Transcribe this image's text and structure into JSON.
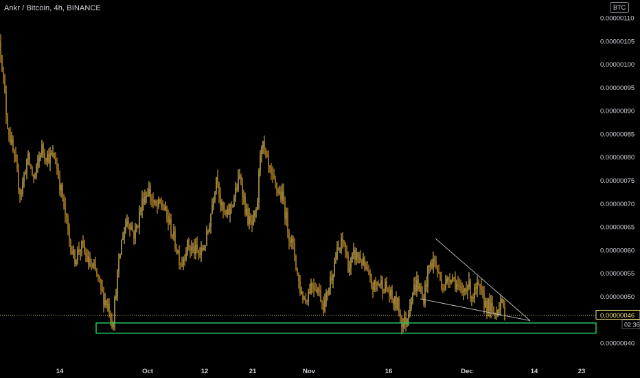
{
  "header": {
    "title": "Ankr / Bitcoin, 4h, BINANCE",
    "currency_badge": "BTC"
  },
  "chart_data": {
    "type": "candlestick",
    "pair": "Ankr / Bitcoin",
    "interval": "4h",
    "exchange": "BINANCE",
    "ylim": [
      3.8e-08,
      1.11e-07
    ],
    "y_ticks": [
      "0.00000110",
      "0.00000105",
      "0.00000100",
      "0.00000095",
      "0.00000090",
      "0.00000085",
      "0.00000080",
      "0.00000075",
      "0.00000070",
      "0.00000065",
      "0.00000060",
      "0.00000055",
      "0.00000050",
      "0.00000040"
    ],
    "y_tick_values": [
      110,
      105,
      100,
      95,
      90,
      85,
      80,
      75,
      70,
      65,
      60,
      55,
      50,
      40
    ],
    "x_ticks": [
      "14",
      "Oct",
      "12",
      "21",
      "Nov",
      "16",
      "Dec",
      "14",
      "23"
    ],
    "x_tick_values": [
      87,
      215,
      298,
      368,
      450,
      566,
      680,
      778,
      847
    ],
    "current_price": {
      "label": "0.00000046",
      "value": 46,
      "countdown": "02:36:32"
    },
    "price_path": [
      [
        0,
        105
      ],
      [
        10,
        88
      ],
      [
        20,
        80
      ],
      [
        30,
        72
      ],
      [
        40,
        80
      ],
      [
        50,
        75
      ],
      [
        60,
        82
      ],
      [
        70,
        80
      ],
      [
        80,
        80
      ],
      [
        90,
        72
      ],
      [
        100,
        63
      ],
      [
        108,
        58
      ],
      [
        118,
        61
      ],
      [
        130,
        57
      ],
      [
        140,
        55
      ],
      [
        150,
        50
      ],
      [
        158,
        48
      ],
      [
        164,
        44
      ],
      [
        170,
        53
      ],
      [
        178,
        63
      ],
      [
        186,
        67
      ],
      [
        196,
        63
      ],
      [
        208,
        71
      ],
      [
        216,
        73
      ],
      [
        226,
        69
      ],
      [
        236,
        70
      ],
      [
        246,
        66
      ],
      [
        256,
        61
      ],
      [
        264,
        57
      ],
      [
        272,
        61
      ],
      [
        282,
        60
      ],
      [
        292,
        59
      ],
      [
        302,
        63
      ],
      [
        310,
        71
      ],
      [
        316,
        77
      ],
      [
        322,
        69
      ],
      [
        330,
        67
      ],
      [
        340,
        71
      ],
      [
        350,
        76
      ],
      [
        358,
        68
      ],
      [
        366,
        65
      ],
      [
        374,
        68
      ],
      [
        380,
        84
      ],
      [
        388,
        79
      ],
      [
        396,
        75
      ],
      [
        404,
        73
      ],
      [
        412,
        71
      ],
      [
        420,
        64
      ],
      [
        428,
        60
      ],
      [
        436,
        52
      ],
      [
        444,
        49
      ],
      [
        454,
        53
      ],
      [
        462,
        52
      ],
      [
        472,
        48
      ],
      [
        480,
        53
      ],
      [
        490,
        59
      ],
      [
        500,
        62
      ],
      [
        508,
        56
      ],
      [
        516,
        59
      ],
      [
        526,
        58
      ],
      [
        534,
        55
      ],
      [
        542,
        52
      ],
      [
        552,
        53
      ],
      [
        562,
        52
      ],
      [
        572,
        49
      ],
      [
        580,
        48
      ],
      [
        586,
        44
      ],
      [
        592,
        45
      ],
      [
        600,
        51
      ],
      [
        608,
        53
      ],
      [
        616,
        49
      ],
      [
        624,
        56
      ],
      [
        632,
        58
      ],
      [
        640,
        54
      ],
      [
        648,
        52
      ],
      [
        656,
        55
      ],
      [
        664,
        53
      ],
      [
        672,
        50
      ],
      [
        680,
        53
      ],
      [
        688,
        50
      ],
      [
        696,
        52
      ],
      [
        704,
        49
      ],
      [
        712,
        48
      ],
      [
        720,
        46
      ],
      [
        728,
        49
      ],
      [
        736,
        46
      ]
    ],
    "support_zone": {
      "low": 42.1,
      "high": 44.3,
      "x_start": 140,
      "x_end": 868,
      "color": "#22c55e"
    },
    "wedge_lines": [
      {
        "from": [
          634,
          62.5
        ],
        "to": [
          772,
          44.8
        ]
      },
      {
        "from": [
          612,
          49.5
        ],
        "to": [
          772,
          44.8
        ]
      }
    ],
    "colors": {
      "candle": "#f2b134",
      "candle_alt": "#f7d86a",
      "zone": "#22c55e",
      "current": "#f6e27a",
      "wedge": "#c8c8c8",
      "axis_text": "#d1d4dc"
    },
    "legend": "none",
    "grid": false
  }
}
